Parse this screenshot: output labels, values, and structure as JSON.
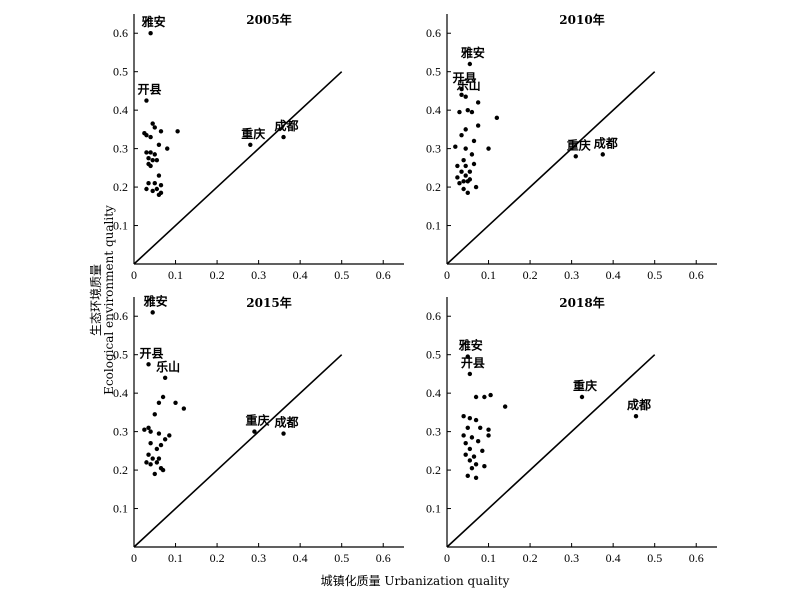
{
  "figure": {
    "ylabel_cn": "生态环境质量",
    "ylabel_en": "Ecological environment quality",
    "xlabel": "城镇化质量 Urbanization quality"
  },
  "chart_data": [
    {
      "type": "scatter",
      "title": "2005年",
      "xlim": [
        0,
        0.65
      ],
      "ylim": [
        0,
        0.65
      ],
      "xticks": [
        "0",
        "0.1",
        "0.2",
        "0.3",
        "0.4",
        "0.5",
        "0.6"
      ],
      "yticks": [
        "0",
        "0.1",
        "0.2",
        "0.3",
        "0.4",
        "0.5",
        "0.6"
      ],
      "diagonal": [
        [
          0,
          0
        ],
        [
          0.5,
          0.5
        ]
      ],
      "points": [
        [
          0.04,
          0.6
        ],
        [
          0.03,
          0.425
        ],
        [
          0.045,
          0.365
        ],
        [
          0.05,
          0.355
        ],
        [
          0.025,
          0.34
        ],
        [
          0.03,
          0.335
        ],
        [
          0.065,
          0.345
        ],
        [
          0.105,
          0.345
        ],
        [
          0.04,
          0.33
        ],
        [
          0.06,
          0.31
        ],
        [
          0.03,
          0.29
        ],
        [
          0.04,
          0.29
        ],
        [
          0.05,
          0.285
        ],
        [
          0.08,
          0.3
        ],
        [
          0.035,
          0.275
        ],
        [
          0.045,
          0.27
        ],
        [
          0.035,
          0.26
        ],
        [
          0.055,
          0.27
        ],
        [
          0.04,
          0.255
        ],
        [
          0.06,
          0.23
        ],
        [
          0.035,
          0.21
        ],
        [
          0.05,
          0.21
        ],
        [
          0.065,
          0.205
        ],
        [
          0.03,
          0.195
        ],
        [
          0.055,
          0.195
        ],
        [
          0.045,
          0.19
        ],
        [
          0.065,
          0.185
        ],
        [
          0.06,
          0.18
        ],
        [
          0.28,
          0.31
        ],
        [
          0.36,
          0.33
        ]
      ],
      "labels": [
        {
          "text": "雅安",
          "x": 0.04,
          "y": 0.6
        },
        {
          "text": "开县",
          "x": 0.03,
          "y": 0.425
        },
        {
          "text": "重庆",
          "x": 0.28,
          "y": 0.31
        },
        {
          "text": "成都",
          "x": 0.36,
          "y": 0.33
        }
      ]
    },
    {
      "type": "scatter",
      "title": "2010年",
      "xlim": [
        0,
        0.65
      ],
      "ylim": [
        0,
        0.65
      ],
      "xticks": [
        "0",
        "0.1",
        "0.2",
        "0.3",
        "0.4",
        "0.5",
        "0.6"
      ],
      "yticks": [
        "0",
        "0.1",
        "0.2",
        "0.3",
        "0.4",
        "0.5",
        "0.6"
      ],
      "diagonal": [
        [
          0,
          0
        ],
        [
          0.5,
          0.5
        ]
      ],
      "points": [
        [
          0.055,
          0.52
        ],
        [
          0.035,
          0.455
        ],
        [
          0.035,
          0.44
        ],
        [
          0.045,
          0.435
        ],
        [
          0.075,
          0.42
        ],
        [
          0.03,
          0.395
        ],
        [
          0.05,
          0.4
        ],
        [
          0.06,
          0.395
        ],
        [
          0.12,
          0.38
        ],
        [
          0.075,
          0.36
        ],
        [
          0.045,
          0.35
        ],
        [
          0.035,
          0.335
        ],
        [
          0.065,
          0.32
        ],
        [
          0.02,
          0.305
        ],
        [
          0.045,
          0.3
        ],
        [
          0.1,
          0.3
        ],
        [
          0.06,
          0.285
        ],
        [
          0.04,
          0.27
        ],
        [
          0.065,
          0.26
        ],
        [
          0.025,
          0.255
        ],
        [
          0.045,
          0.255
        ],
        [
          0.035,
          0.24
        ],
        [
          0.055,
          0.24
        ],
        [
          0.025,
          0.225
        ],
        [
          0.045,
          0.23
        ],
        [
          0.04,
          0.215
        ],
        [
          0.055,
          0.22
        ],
        [
          0.03,
          0.21
        ],
        [
          0.05,
          0.215
        ],
        [
          0.07,
          0.2
        ],
        [
          0.04,
          0.195
        ],
        [
          0.05,
          0.185
        ],
        [
          0.31,
          0.28
        ],
        [
          0.375,
          0.285
        ]
      ],
      "labels": [
        {
          "text": "雅安",
          "x": 0.055,
          "y": 0.52
        },
        {
          "text": "开县",
          "x": 0.035,
          "y": 0.455
        },
        {
          "text": "乐山",
          "x": 0.045,
          "y": 0.435
        },
        {
          "text": "重庆",
          "x": 0.31,
          "y": 0.28
        },
        {
          "text": "成都",
          "x": 0.375,
          "y": 0.285
        }
      ]
    },
    {
      "type": "scatter",
      "title": "2015年",
      "xlim": [
        0,
        0.65
      ],
      "ylim": [
        0,
        0.65
      ],
      "xticks": [
        "0",
        "0.1",
        "0.2",
        "0.3",
        "0.4",
        "0.5",
        "0.6"
      ],
      "yticks": [
        "0",
        "0.1",
        "0.2",
        "0.3",
        "0.4",
        "0.5",
        "0.6"
      ],
      "diagonal": [
        [
          0,
          0
        ],
        [
          0.5,
          0.5
        ]
      ],
      "points": [
        [
          0.045,
          0.61
        ],
        [
          0.035,
          0.475
        ],
        [
          0.075,
          0.44
        ],
        [
          0.07,
          0.39
        ],
        [
          0.06,
          0.375
        ],
        [
          0.1,
          0.375
        ],
        [
          0.12,
          0.36
        ],
        [
          0.05,
          0.345
        ],
        [
          0.025,
          0.305
        ],
        [
          0.04,
          0.3
        ],
        [
          0.035,
          0.31
        ],
        [
          0.06,
          0.295
        ],
        [
          0.085,
          0.29
        ],
        [
          0.075,
          0.28
        ],
        [
          0.04,
          0.27
        ],
        [
          0.065,
          0.265
        ],
        [
          0.055,
          0.255
        ],
        [
          0.035,
          0.24
        ],
        [
          0.045,
          0.23
        ],
        [
          0.06,
          0.23
        ],
        [
          0.03,
          0.22
        ],
        [
          0.055,
          0.22
        ],
        [
          0.04,
          0.215
        ],
        [
          0.065,
          0.205
        ],
        [
          0.07,
          0.2
        ],
        [
          0.05,
          0.19
        ],
        [
          0.29,
          0.3
        ],
        [
          0.36,
          0.295
        ]
      ],
      "labels": [
        {
          "text": "雅安",
          "x": 0.045,
          "y": 0.61
        },
        {
          "text": "开县",
          "x": 0.035,
          "y": 0.475
        },
        {
          "text": "乐山",
          "x": 0.075,
          "y": 0.44
        },
        {
          "text": "重庆",
          "x": 0.29,
          "y": 0.3
        },
        {
          "text": "成都",
          "x": 0.36,
          "y": 0.295
        }
      ]
    },
    {
      "type": "scatter",
      "title": "2018年",
      "xlim": [
        0,
        0.65
      ],
      "ylim": [
        0,
        0.65
      ],
      "xticks": [
        "0",
        "0.1",
        "0.2",
        "0.3",
        "0.4",
        "0.5",
        "0.6"
      ],
      "yticks": [
        "0",
        "0.1",
        "0.2",
        "0.3",
        "0.4",
        "0.5",
        "0.6"
      ],
      "diagonal": [
        [
          0,
          0
        ],
        [
          0.5,
          0.5
        ]
      ],
      "points": [
        [
          0.05,
          0.495
        ],
        [
          0.055,
          0.45
        ],
        [
          0.07,
          0.39
        ],
        [
          0.09,
          0.39
        ],
        [
          0.105,
          0.395
        ],
        [
          0.14,
          0.365
        ],
        [
          0.055,
          0.335
        ],
        [
          0.04,
          0.34
        ],
        [
          0.07,
          0.33
        ],
        [
          0.05,
          0.31
        ],
        [
          0.08,
          0.31
        ],
        [
          0.1,
          0.305
        ],
        [
          0.04,
          0.29
        ],
        [
          0.06,
          0.285
        ],
        [
          0.1,
          0.29
        ],
        [
          0.045,
          0.27
        ],
        [
          0.075,
          0.275
        ],
        [
          0.055,
          0.255
        ],
        [
          0.085,
          0.25
        ],
        [
          0.045,
          0.24
        ],
        [
          0.065,
          0.235
        ],
        [
          0.055,
          0.225
        ],
        [
          0.07,
          0.215
        ],
        [
          0.09,
          0.21
        ],
        [
          0.06,
          0.205
        ],
        [
          0.05,
          0.185
        ],
        [
          0.07,
          0.18
        ],
        [
          0.325,
          0.39
        ],
        [
          0.455,
          0.34
        ]
      ],
      "labels": [
        {
          "text": "雅安",
          "x": 0.05,
          "y": 0.495
        },
        {
          "text": "开县",
          "x": 0.055,
          "y": 0.45
        },
        {
          "text": "重庆",
          "x": 0.325,
          "y": 0.39
        },
        {
          "text": "成都",
          "x": 0.455,
          "y": 0.34
        }
      ]
    }
  ]
}
